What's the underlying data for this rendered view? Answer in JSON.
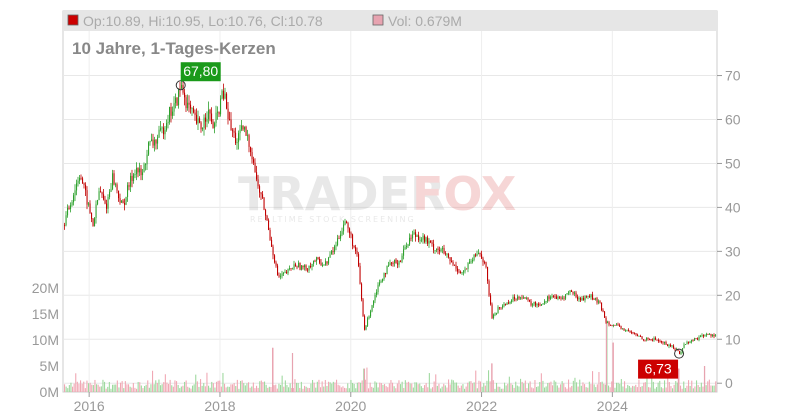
{
  "header": {
    "ohlc": "Op:10.89, Hi:10.95, Lo:10.76, Cl:10.78",
    "volume": "Vol: 0.679M",
    "ohlc_color": "#cc0000",
    "volume_color": "#e7a3b0"
  },
  "watermark": {
    "brand_left": "TRADER",
    "brand_right": "FOX",
    "tagline": "REALTIME STOCK SCREENING"
  },
  "chart_data": {
    "type": "candlestick",
    "title": "10 Jahre, 1-Tages-Kerzen",
    "y_ticks": [
      "70",
      "60",
      "50",
      "40",
      "30",
      "20",
      "10",
      "0"
    ],
    "y_tick_values": [
      70,
      60,
      50,
      40,
      30,
      20,
      10,
      0
    ],
    "vol_ticks": [
      "20M",
      "15M",
      "10M",
      "5M",
      "0M"
    ],
    "vol_tick_values": [
      20,
      15,
      10,
      5,
      0
    ],
    "x_ticks": [
      "2016",
      "2018",
      "2020",
      "2022",
      "2024"
    ],
    "x_tick_values": [
      2016,
      2018,
      2020,
      2022,
      2024
    ],
    "x_range": [
      2015.6,
      2025.6
    ],
    "y_range": [
      -2,
      79
    ],
    "vol_range": [
      0,
      25
    ],
    "up_color": "#2ca02c",
    "down_color": "#c00000",
    "high": {
      "label": "67,80",
      "x": 2017.4,
      "y": 67.8,
      "color": "#1a9a1a"
    },
    "low": {
      "label": "6,73",
      "x": 2025.02,
      "y": 6.73,
      "color": "#cc0000"
    },
    "price_path": [
      [
        2015.6,
        36
      ],
      [
        2015.75,
        43
      ],
      [
        2015.85,
        48
      ],
      [
        2015.95,
        42
      ],
      [
        2016.05,
        36
      ],
      [
        2016.15,
        44
      ],
      [
        2016.25,
        40
      ],
      [
        2016.35,
        47
      ],
      [
        2016.5,
        40
      ],
      [
        2016.6,
        45
      ],
      [
        2016.7,
        49
      ],
      [
        2016.8,
        47
      ],
      [
        2016.9,
        54
      ],
      [
        2017.0,
        55
      ],
      [
        2017.1,
        57
      ],
      [
        2017.2,
        61
      ],
      [
        2017.3,
        63
      ],
      [
        2017.4,
        67.8
      ],
      [
        2017.5,
        63
      ],
      [
        2017.6,
        60
      ],
      [
        2017.7,
        58
      ],
      [
        2017.8,
        62
      ],
      [
        2017.9,
        58
      ],
      [
        2018.0,
        64
      ],
      [
        2018.05,
        66
      ],
      [
        2018.15,
        58
      ],
      [
        2018.25,
        55
      ],
      [
        2018.35,
        58
      ],
      [
        2018.45,
        54
      ],
      [
        2018.5,
        51
      ],
      [
        2018.55,
        46
      ],
      [
        2018.65,
        41
      ],
      [
        2018.72,
        36
      ],
      [
        2018.8,
        30
      ],
      [
        2018.88,
        24
      ],
      [
        2019.0,
        25
      ],
      [
        2019.15,
        27
      ],
      [
        2019.3,
        26
      ],
      [
        2019.45,
        28
      ],
      [
        2019.6,
        27
      ],
      [
        2019.75,
        31
      ],
      [
        2019.85,
        35
      ],
      [
        2019.9,
        37
      ],
      [
        2020.0,
        33
      ],
      [
        2020.1,
        28
      ],
      [
        2020.15,
        20
      ],
      [
        2020.2,
        12
      ],
      [
        2020.3,
        17
      ],
      [
        2020.4,
        22
      ],
      [
        2020.5,
        25
      ],
      [
        2020.6,
        27
      ],
      [
        2020.75,
        28
      ],
      [
        2020.85,
        32
      ],
      [
        2020.95,
        34
      ],
      [
        2021.1,
        33
      ],
      [
        2021.25,
        31
      ],
      [
        2021.4,
        30
      ],
      [
        2021.55,
        27
      ],
      [
        2021.7,
        25
      ],
      [
        2021.85,
        28
      ],
      [
        2021.95,
        30
      ],
      [
        2022.05,
        27
      ],
      [
        2022.1,
        21
      ],
      [
        2022.15,
        15
      ],
      [
        2022.25,
        17
      ],
      [
        2022.45,
        19
      ],
      [
        2022.6,
        20
      ],
      [
        2022.75,
        18
      ],
      [
        2022.9,
        18
      ],
      [
        2023.05,
        20
      ],
      [
        2023.2,
        19
      ],
      [
        2023.35,
        21
      ],
      [
        2023.5,
        19
      ],
      [
        2023.65,
        20
      ],
      [
        2023.8,
        18
      ],
      [
        2023.9,
        14
      ],
      [
        2024.05,
        13
      ],
      [
        2024.2,
        12
      ],
      [
        2024.35,
        11
      ],
      [
        2024.5,
        10
      ],
      [
        2024.65,
        10
      ],
      [
        2024.8,
        9
      ],
      [
        2024.95,
        8
      ],
      [
        2025.02,
        6.73
      ],
      [
        2025.1,
        9
      ],
      [
        2025.25,
        10
      ],
      [
        2025.4,
        11
      ],
      [
        2025.6,
        11
      ]
    ],
    "volume_spikes": [
      [
        2018.8,
        8.5
      ],
      [
        2019.1,
        7.5
      ],
      [
        2020.2,
        4.5
      ],
      [
        2022.15,
        5.5
      ],
      [
        2023.9,
        13.5
      ],
      [
        2024.0,
        9.5
      ],
      [
        2025.0,
        4.5
      ],
      [
        2025.4,
        5
      ]
    ]
  }
}
